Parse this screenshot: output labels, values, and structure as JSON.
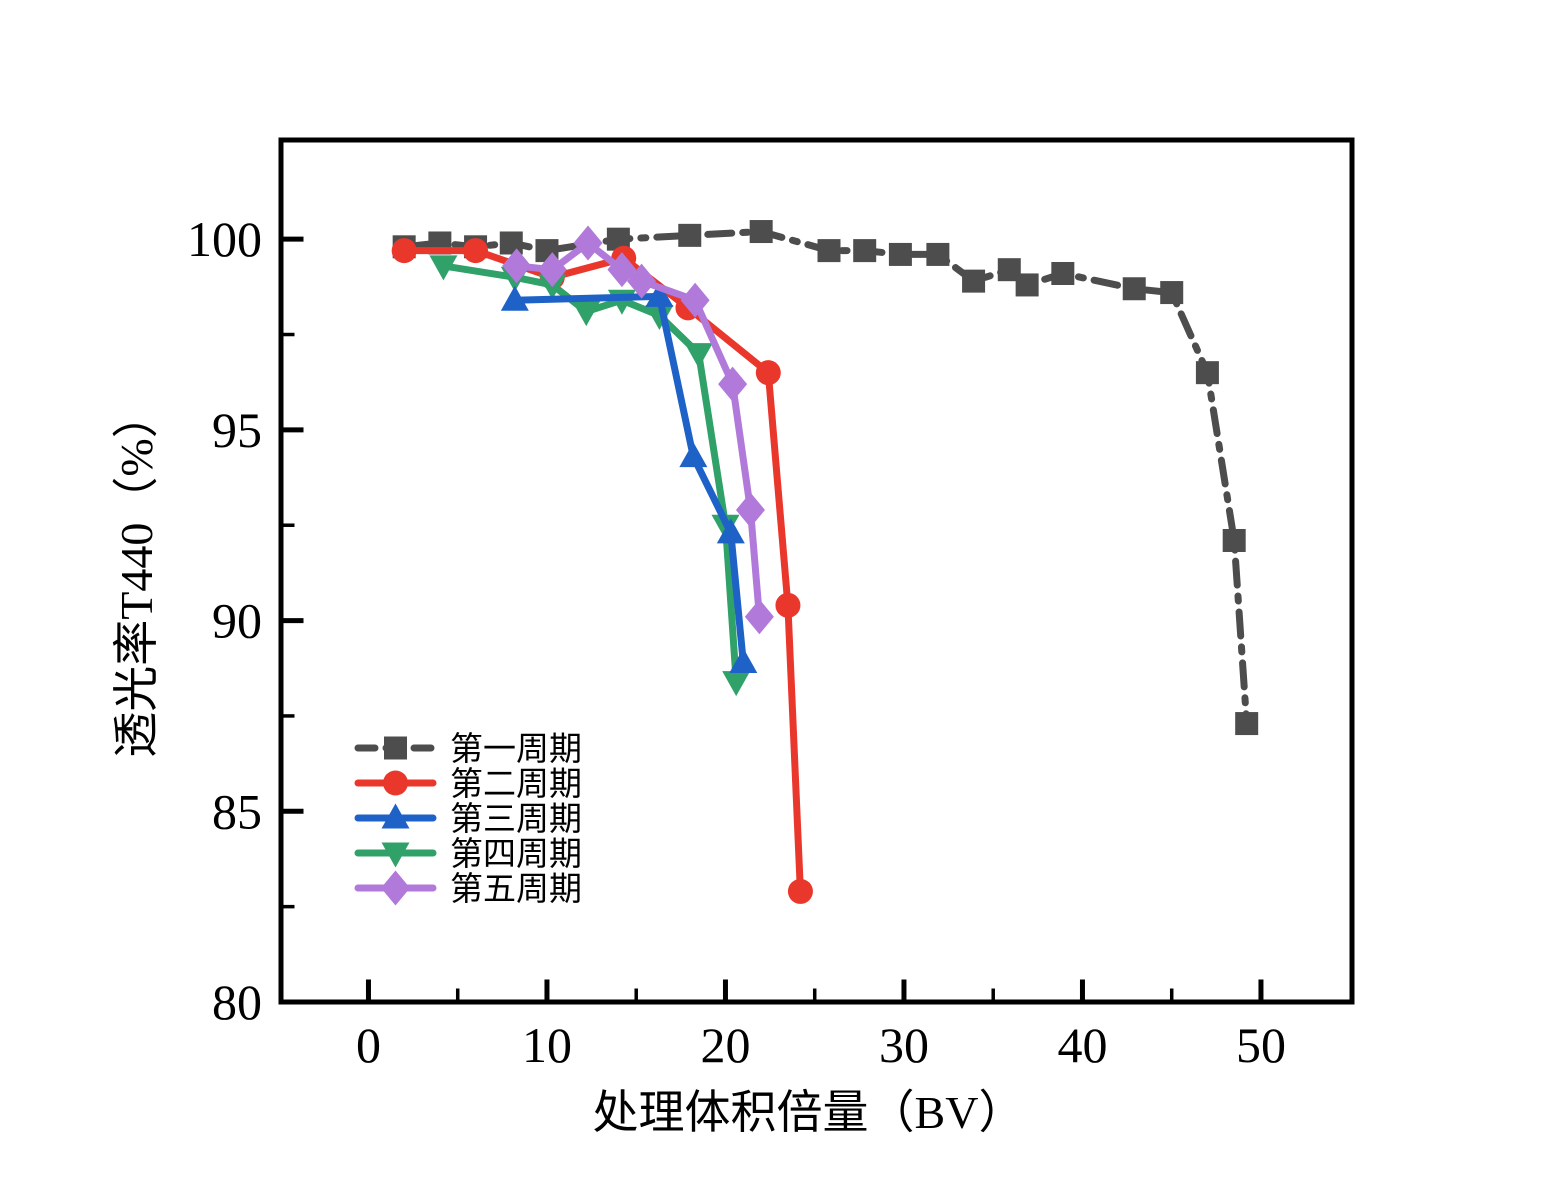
{
  "figure": {
    "title": "",
    "background_color": "#ffffff",
    "frame_color": "#000000"
  },
  "chart_data": {
    "type": "line",
    "title": "",
    "xlabel": "处理体积倍量（BV）",
    "ylabel": "透光率T440（%）",
    "xlim": [
      -4.9,
      55.1
    ],
    "ylim": [
      80,
      102.6
    ],
    "grid": false,
    "legend_position": "lower-left",
    "x_ticks": [
      0,
      10,
      20,
      30,
      40,
      50
    ],
    "x_tick_labels": [
      "0",
      "10",
      "20",
      "30",
      "40",
      "50"
    ],
    "x_minor_ticks": [
      5,
      15,
      25,
      35,
      45
    ],
    "y_ticks": [
      80,
      85,
      90,
      95,
      100
    ],
    "y_tick_labels": [
      "80",
      "85",
      "90",
      "95",
      "100"
    ],
    "y_minor_ticks": [
      82.5,
      87.5,
      92.5,
      97.5
    ],
    "series": [
      {
        "name": "第一周期",
        "color": "#4d4d4d",
        "marker": "square",
        "line_style": "dash-dot",
        "points": [
          [
            2,
            99.8
          ],
          [
            4,
            99.9
          ],
          [
            6,
            99.8
          ],
          [
            8,
            99.9
          ],
          [
            10,
            99.7
          ],
          [
            14,
            100.0
          ],
          [
            18,
            100.1
          ],
          [
            22,
            100.2
          ],
          [
            25.8,
            99.7
          ],
          [
            27.8,
            99.7
          ],
          [
            29.8,
            99.6
          ],
          [
            31.9,
            99.6
          ],
          [
            33.9,
            98.9
          ],
          [
            35.9,
            99.2
          ],
          [
            36.9,
            98.8
          ],
          [
            38.9,
            99.1
          ],
          [
            42.9,
            98.7
          ],
          [
            45,
            98.6
          ],
          [
            47,
            96.5
          ],
          [
            48.5,
            92.1
          ],
          [
            49.2,
            87.3
          ]
        ]
      },
      {
        "name": "第二周期",
        "color": "#ea372c",
        "marker": "circle",
        "line_style": "solid",
        "points": [
          [
            2,
            99.7
          ],
          [
            6,
            99.7
          ],
          [
            10.3,
            99.0
          ],
          [
            14.3,
            99.5
          ],
          [
            17.9,
            98.2
          ],
          [
            22.4,
            96.5
          ],
          [
            23.5,
            90.4
          ],
          [
            24.2,
            82.9
          ]
        ]
      },
      {
        "name": "第三周期",
        "color": "#1e62c8",
        "marker": "triangle-up",
        "line_style": "solid",
        "points": [
          [
            8.2,
            98.4
          ],
          [
            16.3,
            98.5
          ],
          [
            18.2,
            94.3
          ],
          [
            20.3,
            92.3
          ],
          [
            21,
            88.9
          ]
        ]
      },
      {
        "name": "第四周期",
        "color": "#2fa169",
        "marker": "triangle-down",
        "line_style": "solid",
        "points": [
          [
            4.2,
            99.3
          ],
          [
            8.2,
            99.0
          ],
          [
            10.3,
            98.8
          ],
          [
            12.2,
            98.1
          ],
          [
            14.2,
            98.4
          ],
          [
            16.3,
            98.0
          ],
          [
            18.5,
            97.0
          ],
          [
            20,
            92.5
          ],
          [
            20.6,
            88.4
          ]
        ]
      },
      {
        "name": "第五周期",
        "color": "#b179da",
        "marker": "diamond",
        "line_style": "solid",
        "points": [
          [
            8.3,
            99.3
          ],
          [
            10.3,
            99.2
          ],
          [
            12.3,
            99.9
          ],
          [
            14.2,
            99.2
          ],
          [
            15.3,
            98.9
          ],
          [
            18.3,
            98.4
          ],
          [
            20.4,
            96.2
          ],
          [
            21.4,
            92.9
          ],
          [
            21.9,
            90.1
          ]
        ]
      }
    ]
  }
}
